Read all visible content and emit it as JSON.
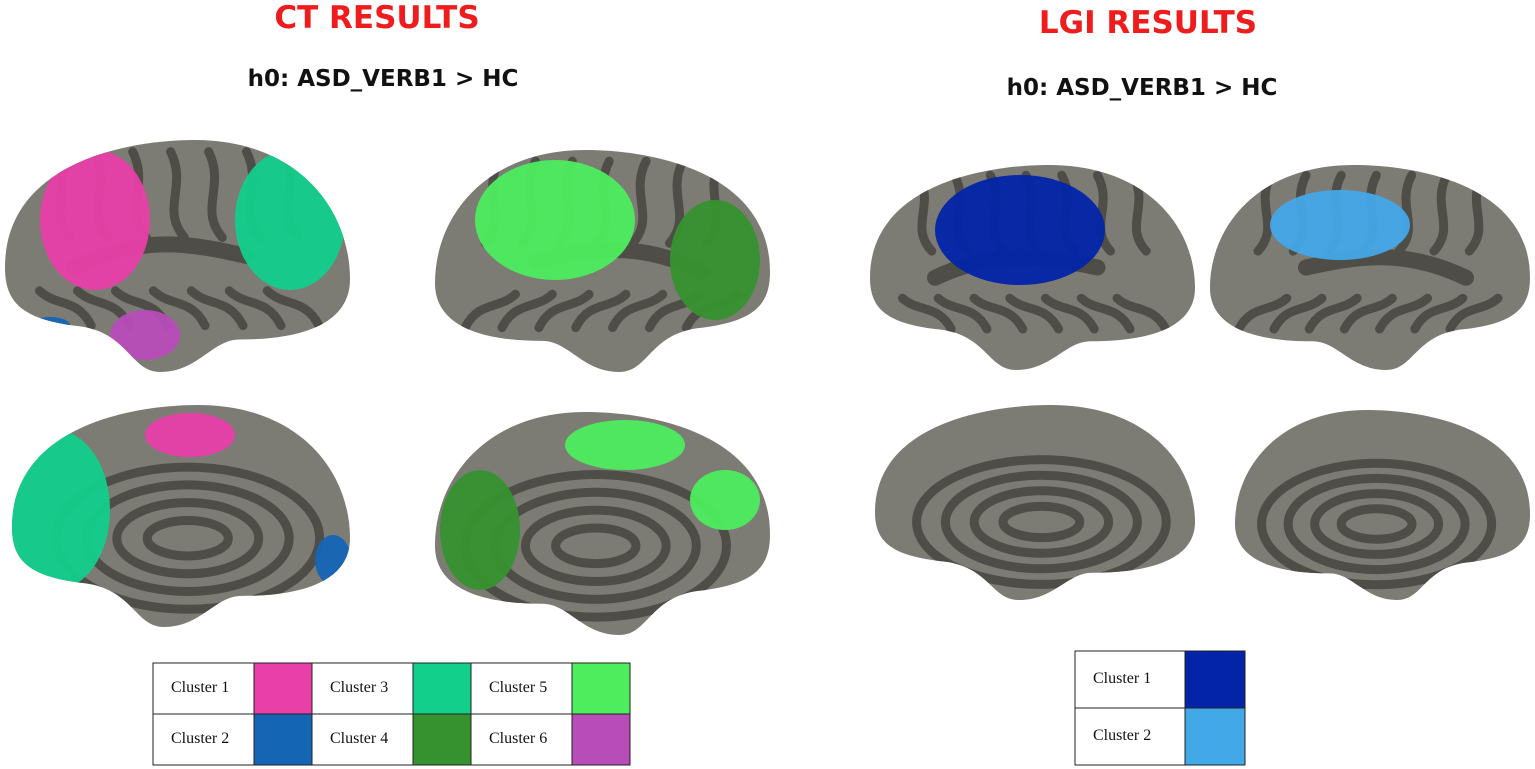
{
  "left_panel": {
    "title": "CT RESULTS",
    "hypothesis": "h0: ASD_VERB1 > HC",
    "legend": [
      {
        "label": "Cluster 1",
        "color": "#e83fa8"
      },
      {
        "label": "Cluster 2",
        "color": "#1565b5"
      },
      {
        "label": "Cluster 3",
        "color": "#12cf8c"
      },
      {
        "label": "Cluster 4",
        "color": "#36922f"
      },
      {
        "label": "Cluster 5",
        "color": "#4ded5e"
      },
      {
        "label": "Cluster 6",
        "color": "#b84cb8"
      }
    ]
  },
  "right_panel": {
    "title": "LGI  RESULTS",
    "hypothesis": "h0: ASD_VERB1 > HC",
    "legend": [
      {
        "label": "Cluster 1",
        "color": "#0324a8"
      },
      {
        "label": "Cluster 2",
        "color": "#43a8e8"
      }
    ]
  }
}
